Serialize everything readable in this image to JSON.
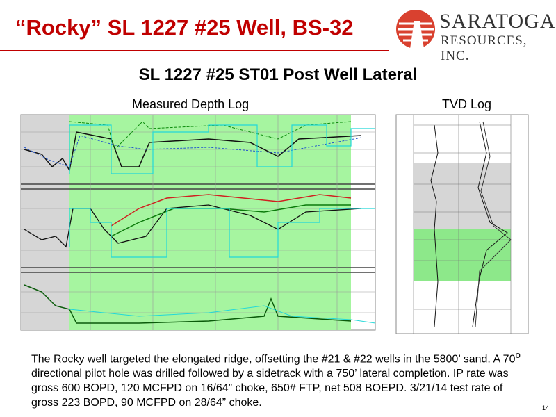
{
  "header": {
    "title": "“Rocky” SL 1227 #25 Well, BS-32",
    "logo_line1": "SARATOGA",
    "logo_line2": "RESOURCES, INC."
  },
  "subtitle": "SL 1227 #25 ST01 Post Well Lateral",
  "logs": {
    "left_label": "Measured Depth Log",
    "right_label": "TVD Log"
  },
  "body": {
    "text_before": "The Rocky well targeted the elongated ridge, offsetting the #21 & #22 wells in the 5800’ sand.  A 70",
    "superscript": "o",
    "text_after": " directional pilot hole was drilled followed by a sidetrack with a 750’ lateral completion. IP rate was gross 600 BOPD, 120 MCFPD on 16/64” choke, 650# FTP, net 508 BOEPD. 3/21/14 test rate of gross 223 BOPD, 90 MCFPD on 28/64” choke."
  },
  "page_number": "14"
}
